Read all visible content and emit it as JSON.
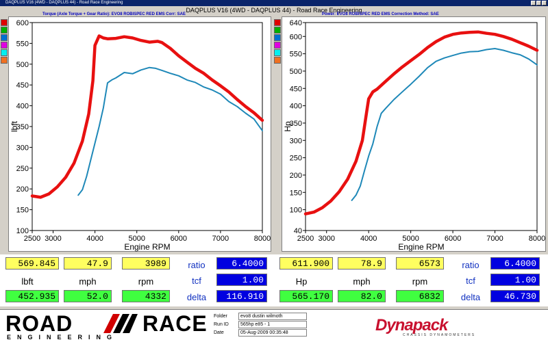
{
  "window": {
    "title": "DAQPLUS V16 (4WD - DAQPLUS 44) - Road Race Engineering"
  },
  "header": {
    "title": "DAQPLUS V16 (4WD - DAQPLUS 44) - Road Race Engineering",
    "left_sub": "Torque (Axle Torque + Gear Ratio): EVO8 ROBISPEC RED EMS       Corr: SAE",
    "right_sub": "Power: EVO8 ROBISPEC RED EMS          Correction Method: SAE"
  },
  "swatch_colors": [
    "#e00000",
    "#00b000",
    "#0070d0",
    "#e000e0",
    "#00f0f0",
    "#f07020"
  ],
  "colors": {
    "red_run": "#e81010",
    "blue_run": "#1e88b8",
    "yellow_cell": "#ffff60",
    "green_cell": "#40ff40",
    "blue_cell": "#0000e0"
  },
  "chart_data": [
    {
      "type": "line",
      "title": "",
      "xlabel": "Engine RPM",
      "ylabel": "lbft",
      "xlim": [
        2500,
        8000
      ],
      "ylim": [
        100,
        600
      ],
      "xticks": [
        2500,
        3000,
        4000,
        5000,
        6000,
        7000,
        8000
      ],
      "yticks": [
        100,
        150,
        200,
        250,
        300,
        350,
        400,
        450,
        500,
        550,
        600
      ],
      "grid": false,
      "series": [
        {
          "color": "#e81010",
          "x": [
            2500,
            2700,
            2900,
            3100,
            3300,
            3500,
            3700,
            3850,
            3950,
            4000,
            4100,
            4200,
            4300,
            4500,
            4700,
            4900,
            5100,
            5300,
            5500,
            5600,
            5800,
            6000,
            6200,
            6400,
            6600,
            6800,
            7000,
            7200,
            7400,
            7600,
            7800,
            8000
          ],
          "y": [
            183,
            180,
            188,
            205,
            228,
            262,
            315,
            380,
            460,
            545,
            568,
            563,
            561,
            562,
            566,
            563,
            557,
            553,
            555,
            552,
            538,
            520,
            505,
            490,
            478,
            462,
            448,
            433,
            415,
            398,
            383,
            365
          ]
        },
        {
          "color": "#1e88b8",
          "x": [
            3600,
            3700,
            3800,
            3900,
            4000,
            4100,
            4200,
            4250,
            4300,
            4400,
            4500,
            4700,
            4900,
            5100,
            5300,
            5450,
            5600,
            5800,
            6000,
            6200,
            6400,
            6600,
            6800,
            7000,
            7200,
            7400,
            7600,
            7800,
            8000
          ],
          "y": [
            185,
            198,
            230,
            270,
            310,
            350,
            395,
            425,
            455,
            462,
            467,
            480,
            477,
            486,
            492,
            490,
            485,
            478,
            472,
            462,
            456,
            445,
            438,
            428,
            410,
            398,
            382,
            368,
            340
          ]
        }
      ]
    },
    {
      "type": "line",
      "title": "",
      "xlabel": "Engine RPM",
      "ylabel": "Hp",
      "xlim": [
        2500,
        8000
      ],
      "ylim": [
        40,
        640
      ],
      "xticks": [
        2500,
        3000,
        4000,
        5000,
        6000,
        7000,
        8000
      ],
      "yticks": [
        40,
        100,
        150,
        200,
        250,
        300,
        350,
        400,
        450,
        500,
        550,
        600,
        640
      ],
      "grid": false,
      "series": [
        {
          "color": "#e81010",
          "x": [
            2500,
            2700,
            2900,
            3100,
            3300,
            3500,
            3700,
            3850,
            3950,
            4000,
            4100,
            4200,
            4400,
            4600,
            4800,
            5000,
            5200,
            5400,
            5600,
            5800,
            6000,
            6200,
            6400,
            6600,
            6800,
            7000,
            7200,
            7400,
            7600,
            7800,
            8000
          ],
          "y": [
            88,
            93,
            106,
            125,
            152,
            188,
            240,
            300,
            380,
            420,
            440,
            448,
            470,
            492,
            512,
            530,
            548,
            568,
            585,
            598,
            606,
            610,
            612,
            613,
            609,
            606,
            600,
            592,
            582,
            572,
            560
          ]
        },
        {
          "color": "#1e88b8",
          "x": [
            3600,
            3700,
            3800,
            3900,
            4000,
            4100,
            4200,
            4300,
            4400,
            4600,
            4800,
            5000,
            5200,
            5400,
            5600,
            5800,
            6000,
            6200,
            6400,
            6600,
            6800,
            7000,
            7200,
            7400,
            7600,
            7800,
            8000
          ],
          "y": [
            127,
            142,
            168,
            212,
            255,
            290,
            340,
            378,
            392,
            418,
            440,
            462,
            485,
            510,
            528,
            538,
            545,
            552,
            556,
            557,
            562,
            565,
            560,
            553,
            547,
            535,
            518
          ]
        }
      ]
    }
  ],
  "readouts": {
    "left": {
      "top_values": [
        "569.845",
        "47.9",
        "3989"
      ],
      "labels": [
        "lbft",
        "mph",
        "rpm"
      ],
      "bottom_values": [
        "452.935",
        "52.0",
        "4332"
      ],
      "side_labels": [
        "ratio",
        "tcf",
        "delta"
      ],
      "side_values": [
        "6.4000",
        "1.00",
        "116.910"
      ]
    },
    "right": {
      "top_values": [
        "611.900",
        "78.9",
        "6573"
      ],
      "labels": [
        "Hp",
        "mph",
        "rpm"
      ],
      "bottom_values": [
        "565.170",
        "82.0",
        "6832"
      ],
      "side_labels": [
        "ratio",
        "tcf",
        "delta"
      ],
      "side_values": [
        "6.4000",
        "1.00",
        "46.730"
      ]
    }
  },
  "footer": {
    "logo_road": "ROAD",
    "logo_race": "RACE",
    "logo_eng": "ENGINEERING",
    "info": [
      {
        "key": "Folder",
        "value": "evo8 dustin wilmoth"
      },
      {
        "key": "Run ID",
        "value": "565hp e85 - 1"
      },
      {
        "key": "Date",
        "value": "05-Aug-2009  00:35:48"
      }
    ],
    "brand": "Dynapack",
    "brand_sub": "CHASSIS DYNAMOMETERS"
  }
}
